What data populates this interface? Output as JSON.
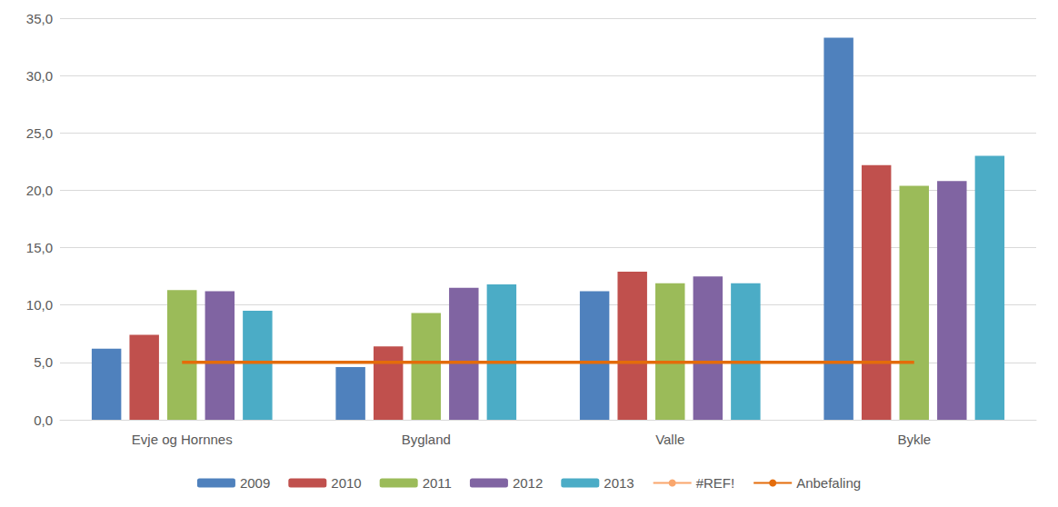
{
  "chart_data": {
    "type": "bar",
    "categories": [
      "Evje og Hornnes",
      "Bygland",
      "Valle",
      "Bykle"
    ],
    "series": [
      {
        "name": "2009",
        "type": "bar",
        "color": "#4f81bd",
        "values": [
          6.2,
          4.6,
          11.2,
          33.3
        ]
      },
      {
        "name": "2010",
        "type": "bar",
        "color": "#c0504d",
        "values": [
          7.4,
          6.4,
          12.9,
          22.2
        ]
      },
      {
        "name": "2011",
        "type": "bar",
        "color": "#9bbb59",
        "values": [
          11.3,
          9.3,
          11.9,
          20.4
        ]
      },
      {
        "name": "2012",
        "type": "bar",
        "color": "#8064a2",
        "values": [
          11.2,
          11.5,
          12.5,
          20.8
        ]
      },
      {
        "name": "2013",
        "type": "bar",
        "color": "#4bacc6",
        "values": [
          9.5,
          11.8,
          11.9,
          23.0
        ]
      },
      {
        "name": "#REF!",
        "type": "line",
        "color": "#f9a66c",
        "values": [
          null,
          null,
          null,
          null
        ]
      },
      {
        "name": "Anbefaling",
        "type": "line",
        "color": "#e46c0a",
        "values": [
          5.0,
          5.0,
          5.0,
          5.0
        ]
      }
    ],
    "ylim": [
      0,
      35
    ],
    "yticks": [
      {
        "value": 0,
        "label": "0,0"
      },
      {
        "value": 5,
        "label": "5,0"
      },
      {
        "value": 10,
        "label": "10,0"
      },
      {
        "value": 15,
        "label": "15,0"
      },
      {
        "value": 20,
        "label": "20,0"
      },
      {
        "value": 25,
        "label": "25,0"
      },
      {
        "value": 30,
        "label": "30,0"
      },
      {
        "value": 35,
        "label": "35,0"
      }
    ],
    "grid": true,
    "legend": "bottom"
  }
}
